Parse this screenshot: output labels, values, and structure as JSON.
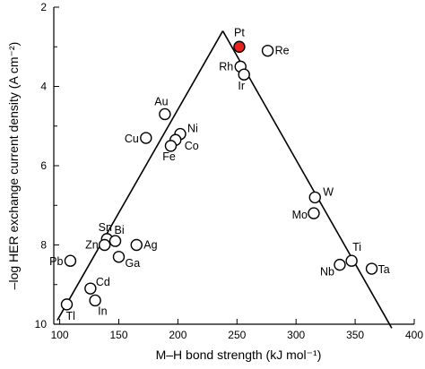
{
  "chart_data": {
    "type": "scatter",
    "title": "",
    "xlabel": "M–H bond strength (kJ mol⁻¹)",
    "ylabel": "–log HER exchange current density (A cm⁻²)",
    "xlim": [
      95,
      400
    ],
    "ylim": [
      2,
      10
    ],
    "y_inverted": true,
    "grid": false,
    "x_ticks": [
      "100",
      "150",
      "200",
      "250",
      "300",
      "350",
      "400"
    ],
    "y_ticks": [
      "2",
      "4",
      "6",
      "8",
      "10"
    ],
    "highlight_color": "#e8231c",
    "volcano_line": {
      "left": [
        {
          "x": 98,
          "y": 9.9
        },
        {
          "x": 238,
          "y": 2.6
        }
      ],
      "right": [
        {
          "x": 238,
          "y": 2.6
        },
        {
          "x": 381,
          "y": 10.1
        }
      ]
    },
    "points": [
      {
        "label": "Pt",
        "x": 252,
        "y": 3.0,
        "highlight": true
      },
      {
        "label": "Re",
        "x": 276,
        "y": 3.1
      },
      {
        "label": "Rh",
        "x": 253,
        "y": 3.5
      },
      {
        "label": "Ir",
        "x": 256,
        "y": 3.7
      },
      {
        "label": "Au",
        "x": 189,
        "y": 4.7
      },
      {
        "label": "Ni",
        "x": 202,
        "y": 5.2
      },
      {
        "label": "Cu",
        "x": 173,
        "y": 5.3
      },
      {
        "label": "Co",
        "x": 198,
        "y": 5.35
      },
      {
        "label": "Fe",
        "x": 194,
        "y": 5.5
      },
      {
        "label": "W",
        "x": 316,
        "y": 6.8
      },
      {
        "label": "Mo",
        "x": 315,
        "y": 7.2
      },
      {
        "label": "Sn",
        "x": 140,
        "y": 7.85
      },
      {
        "label": "Bi",
        "x": 147,
        "y": 7.9
      },
      {
        "label": "Ag",
        "x": 165,
        "y": 8.0
      },
      {
        "label": "Zn",
        "x": 138,
        "y": 8.0
      },
      {
        "label": "Ga",
        "x": 150,
        "y": 8.3
      },
      {
        "label": "Ti",
        "x": 347,
        "y": 8.4
      },
      {
        "label": "Pb",
        "x": 109,
        "y": 8.4
      },
      {
        "label": "Nb",
        "x": 337,
        "y": 8.5
      },
      {
        "label": "Ta",
        "x": 364,
        "y": 8.6
      },
      {
        "label": "Cd",
        "x": 126,
        "y": 9.1
      },
      {
        "label": "In",
        "x": 130,
        "y": 9.4
      },
      {
        "label": "Tl",
        "x": 106,
        "y": 9.5
      }
    ]
  }
}
